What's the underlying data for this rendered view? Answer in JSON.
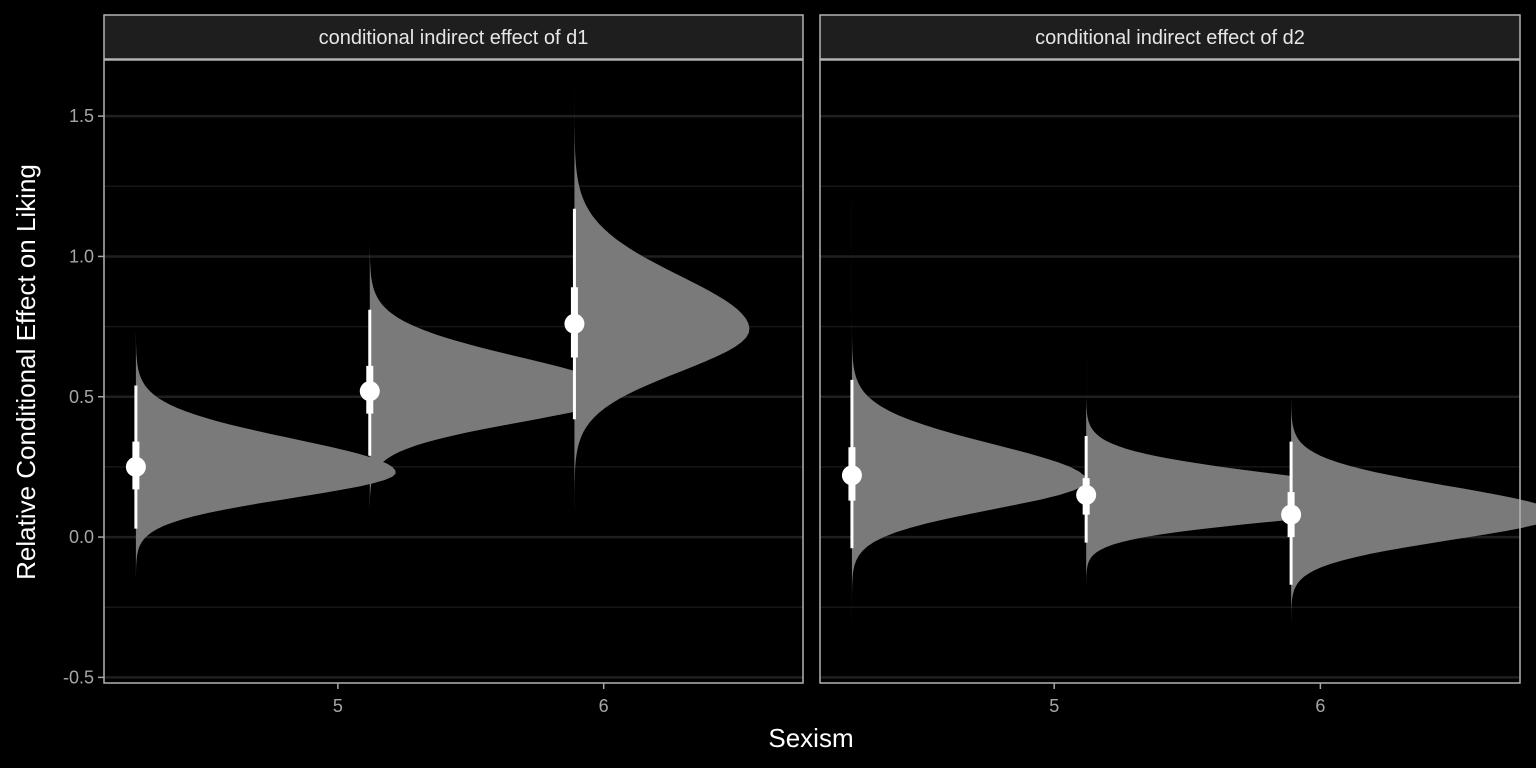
{
  "chart_data": {
    "type": "halfeye",
    "xlabel": "Sexism",
    "ylabel": "Relative Conditional Effect on Liking",
    "x_tick_labels": [
      "5",
      "6"
    ],
    "y_ticks": [
      -0.5,
      0.0,
      0.5,
      1.0,
      1.5
    ],
    "y_tick_labels": [
      "-0.5",
      "0.0",
      "0.5",
      "1.0",
      "1.5"
    ],
    "xlim": [
      4.12,
      6.75
    ],
    "ylim": [
      -0.52,
      1.7
    ],
    "grid": true,
    "colors": {
      "background": "#000000",
      "panel_border": "#b3b3b3",
      "strip_fill": "#1e1e1e",
      "density": "#7a7a7a",
      "interval": "#ffffff",
      "grid": "#1f1f1f"
    },
    "panels": [
      {
        "strip": "conditional indirect effect of d1",
        "points": [
          {
            "x": 4.24,
            "median": 0.25,
            "inner": [
              0.17,
              0.34
            ],
            "outer": [
              0.03,
              0.54
            ],
            "range": [
              -0.24,
              0.81
            ],
            "mode": 0.23,
            "sd_left": 0.09,
            "sd_right": 0.12,
            "peak": 0.52
          },
          {
            "x": 5.12,
            "median": 0.52,
            "inner": [
              0.44,
              0.61
            ],
            "outer": [
              0.29,
              0.81
            ],
            "range": [
              0.07,
              1.12
            ],
            "mode": 0.51,
            "sd_left": 0.1,
            "sd_right": 0.13,
            "peak": 0.5
          },
          {
            "x": 5.89,
            "median": 0.76,
            "inner": [
              0.64,
              0.89
            ],
            "outer": [
              0.42,
              1.17
            ],
            "range": [
              0.09,
              1.6
            ],
            "mode": 0.74,
            "sd_left": 0.15,
            "sd_right": 0.19,
            "peak": 0.35
          }
        ]
      },
      {
        "strip": "conditional indirect effect of d2",
        "points": [
          {
            "x": 4.24,
            "median": 0.22,
            "inner": [
              0.13,
              0.32
            ],
            "outer": [
              -0.04,
              0.56
            ],
            "range": [
              -0.3,
              1.2
            ],
            "mode": 0.2,
            "sd_left": 0.1,
            "sd_right": 0.13,
            "peak": 0.47
          },
          {
            "x": 5.12,
            "median": 0.15,
            "inner": [
              0.08,
              0.21
            ],
            "outer": [
              -0.02,
              0.36
            ],
            "range": [
              -0.18,
              0.63
            ],
            "mode": 0.13,
            "sd_left": 0.07,
            "sd_right": 0.09,
            "peak": 0.66
          },
          {
            "x": 5.89,
            "median": 0.08,
            "inner": [
              0.0,
              0.16
            ],
            "outer": [
              -0.17,
              0.34
            ],
            "range": [
              -0.41,
              0.64
            ],
            "mode": 0.08,
            "sd_left": 0.09,
            "sd_right": 0.1,
            "peak": 0.53
          }
        ]
      }
    ]
  }
}
